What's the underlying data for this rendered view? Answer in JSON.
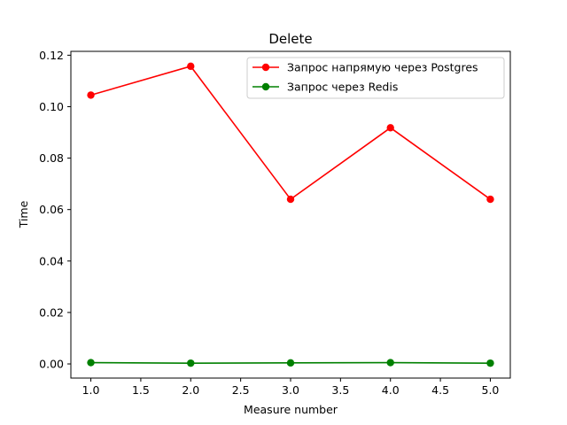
{
  "chart_data": {
    "type": "line",
    "title": "Delete",
    "xlabel": "Measure number",
    "ylabel": "Time",
    "xlim": [
      0.8,
      5.2
    ],
    "ylim": [
      -0.0055,
      0.1215
    ],
    "xticks": [
      1.0,
      1.5,
      2.0,
      2.5,
      3.0,
      3.5,
      4.0,
      4.5,
      5.0
    ],
    "xtick_labels": [
      "1.0",
      "1.5",
      "2.0",
      "2.5",
      "3.0",
      "3.5",
      "4.0",
      "4.5",
      "5.0"
    ],
    "yticks": [
      0.0,
      0.02,
      0.04,
      0.06,
      0.08,
      0.1,
      0.12
    ],
    "ytick_labels": [
      "0.00",
      "0.02",
      "0.04",
      "0.06",
      "0.08",
      "0.10",
      "0.12"
    ],
    "x": [
      1,
      2,
      3,
      4,
      5
    ],
    "series": [
      {
        "name": "Запрос напрямую через Postgres",
        "color": "#ff0000",
        "values": [
          0.1045,
          0.1157,
          0.064,
          0.0918,
          0.064
        ]
      },
      {
        "name": "Запрос через Redis",
        "color": "#008000",
        "values": [
          0.0005,
          0.0003,
          0.0004,
          0.0005,
          0.0003
        ]
      }
    ],
    "grid": false,
    "legend": "top-right"
  }
}
